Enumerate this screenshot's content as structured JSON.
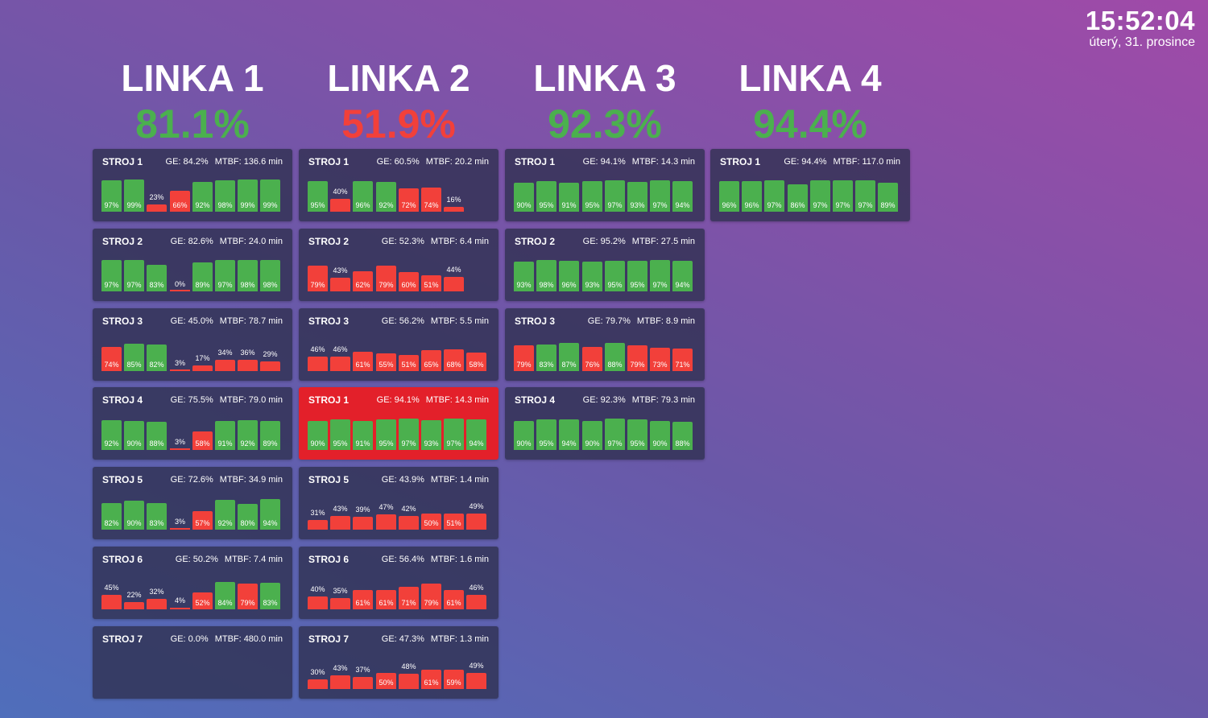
{
  "clock": {
    "time": "15:52:04",
    "date": "úterý, 31. prosince"
  },
  "colors": {
    "green": "#4bb04e",
    "red": "#f2403a",
    "alarm": "#e3202a",
    "card": "#2e304e"
  },
  "stat_labels": {
    "ge": "GE:",
    "mtbf": "MTBF:"
  },
  "lines": [
    {
      "title": "LINKA 1",
      "pct": "81.1%",
      "status": "green",
      "machines": [
        {
          "name": "STROJ 1",
          "ge": "84.2%",
          "mtbf": "136.6 min",
          "bars": [
            97,
            99,
            23,
            66,
            92,
            98,
            99,
            99
          ]
        },
        {
          "name": "STROJ 2",
          "ge": "82.6%",
          "mtbf": "24.0 min",
          "bars": [
            97,
            97,
            83,
            0,
            89,
            97,
            98,
            98
          ]
        },
        {
          "name": "STROJ 3",
          "ge": "45.0%",
          "mtbf": "78.7 min",
          "bars": [
            74,
            85,
            82,
            3,
            17,
            34,
            36,
            29
          ]
        },
        {
          "name": "STROJ 4",
          "ge": "75.5%",
          "mtbf": "79.0 min",
          "bars": [
            92,
            90,
            88,
            3,
            58,
            91,
            92,
            89
          ]
        },
        {
          "name": "STROJ 5",
          "ge": "72.6%",
          "mtbf": "34.9 min",
          "bars": [
            82,
            90,
            83,
            3,
            57,
            92,
            80,
            94
          ]
        },
        {
          "name": "STROJ 6",
          "ge": "50.2%",
          "mtbf": "7.4 min",
          "bars": [
            45,
            22,
            32,
            4,
            52,
            84,
            79,
            83
          ]
        },
        {
          "name": "STROJ 7",
          "ge": "0.0%",
          "mtbf": "480.0 min",
          "bars": []
        }
      ]
    },
    {
      "title": "LINKA 2",
      "pct": "51.9%",
      "status": "red",
      "machines": [
        {
          "name": "STROJ 1",
          "ge": "60.5%",
          "mtbf": "20.2 min",
          "bars": [
            95,
            40,
            96,
            92,
            72,
            74,
            16
          ]
        },
        {
          "name": "STROJ 2",
          "ge": "52.3%",
          "mtbf": "6.4 min",
          "bars": [
            79,
            43,
            62,
            79,
            60,
            51,
            44
          ]
        },
        {
          "name": "STROJ 3",
          "ge": "56.2%",
          "mtbf": "5.5 min",
          "bars": [
            46,
            46,
            61,
            55,
            51,
            65,
            68,
            58
          ]
        },
        {
          "name": "STROJ 1",
          "ge": "94.1%",
          "mtbf": "14.3 min",
          "alarm": true,
          "bars": [
            90,
            95,
            91,
            95,
            97,
            93,
            97,
            94
          ]
        },
        {
          "name": "STROJ 5",
          "ge": "43.9%",
          "mtbf": "1.4 min",
          "bars": [
            31,
            43,
            39,
            47,
            42,
            50,
            51,
            49
          ]
        },
        {
          "name": "STROJ 6",
          "ge": "56.4%",
          "mtbf": "1.6 min",
          "bars": [
            40,
            35,
            61,
            61,
            71,
            79,
            61,
            46
          ]
        },
        {
          "name": "STROJ 7",
          "ge": "47.3%",
          "mtbf": "1.3 min",
          "bars": [
            30,
            43,
            37,
            50,
            48,
            61,
            59,
            49
          ]
        }
      ]
    },
    {
      "title": "LINKA 3",
      "pct": "92.3%",
      "status": "green",
      "machines": [
        {
          "name": "STROJ 1",
          "ge": "94.1%",
          "mtbf": "14.3 min",
          "bars": [
            90,
            95,
            91,
            95,
            97,
            93,
            97,
            94
          ]
        },
        {
          "name": "STROJ 2",
          "ge": "95.2%",
          "mtbf": "27.5 min",
          "bars": [
            93,
            98,
            96,
            93,
            95,
            95,
            97,
            94
          ]
        },
        {
          "name": "STROJ 3",
          "ge": "79.7%",
          "mtbf": "8.9 min",
          "bars": [
            79,
            83,
            87,
            76,
            88,
            79,
            73,
            71
          ]
        },
        {
          "name": "STROJ 4",
          "ge": "92.3%",
          "mtbf": "79.3 min",
          "bars": [
            90,
            95,
            94,
            90,
            97,
            95,
            90,
            88
          ]
        }
      ]
    },
    {
      "title": "LINKA 4",
      "pct": "94.4%",
      "status": "green",
      "machines": [
        {
          "name": "STROJ 1",
          "ge": "94.4%",
          "mtbf": "117.0 min",
          "bars": [
            96,
            96,
            97,
            86,
            97,
            97,
            97,
            89
          ]
        }
      ]
    }
  ]
}
